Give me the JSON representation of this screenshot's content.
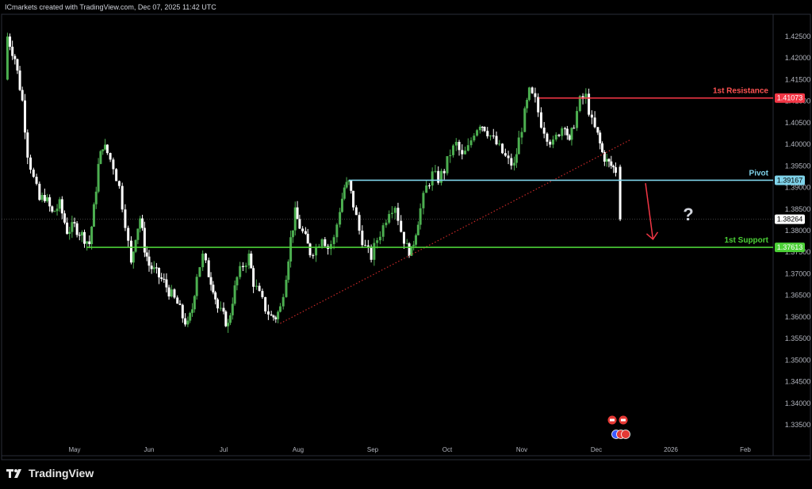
{
  "header": {
    "credit": "ICmarkets created with TradingView.com, Dec 07, 2025 11:42 UTC"
  },
  "footer": {
    "brand": "TradingView",
    "logo_icon": "tradingview-logo-icon"
  },
  "colors": {
    "background": "#000000",
    "bull": "#4caf50",
    "bear": "#ffffff",
    "resistance": "#f23645",
    "pivot": "#7fd3ea",
    "support": "#4cd137",
    "trendline": "#c62828",
    "arrow": "#f23645",
    "axis_text": "#b2b5be"
  },
  "chart_data": {
    "type": "candlestick",
    "title": "",
    "xlabel": "",
    "ylabel": "",
    "ylim": [
      1.3328,
      1.4272
    ],
    "y_ticks": [
      "1.42500",
      "1.42000",
      "1.41500",
      "1.41000",
      "1.40500",
      "1.40000",
      "1.39500",
      "1.39000",
      "1.38500",
      "1.38000",
      "1.37500",
      "1.37000",
      "1.36500",
      "1.36000",
      "1.35500",
      "1.35000",
      "1.34500",
      "1.34000",
      "1.33500"
    ],
    "x_ticks": [
      "May",
      "Jun",
      "Jul",
      "Aug",
      "Sep",
      "Oct",
      "Nov",
      "Dec",
      "2026",
      "Feb"
    ],
    "levels": [
      {
        "name": "1st Resistance",
        "value": 1.41073,
        "label": "1.41073",
        "start_month": 6.23
      },
      {
        "name": "Pivot",
        "value": 1.39167,
        "label": "1.39167",
        "start_month": 3.68
      },
      {
        "name": "1st Support",
        "value": 1.37613,
        "label": "1.37613",
        "start_month": 0.16
      }
    ],
    "current_price": {
      "value": 1.38264,
      "label": "1.38264"
    },
    "trendline": {
      "from": {
        "month": 2.76,
        "price": 1.3585
      },
      "to": {
        "month": 7.45,
        "price": 1.401
      }
    },
    "projection": {
      "from": {
        "month": 7.66,
        "price": 1.391
      },
      "to": {
        "month": 7.76,
        "price": 1.378
      },
      "marker": "?"
    },
    "event_icons": [
      "flag-icon",
      "flag-icon",
      "us-flag-icon"
    ],
    "month_index_note": "months since May 1 (May=0)",
    "path": [
      [
        -0.93,
        1.415
      ],
      [
        -0.9,
        1.425
      ],
      [
        -0.8,
        1.42
      ],
      [
        -0.7,
        1.41
      ],
      [
        -0.63,
        1.398
      ],
      [
        -0.55,
        1.392
      ],
      [
        -0.47,
        1.387
      ],
      [
        -0.4,
        1.388
      ],
      [
        -0.3,
        1.384
      ],
      [
        -0.2,
        1.386
      ],
      [
        -0.1,
        1.38
      ],
      [
        0.0,
        1.381
      ],
      [
        0.1,
        1.379
      ],
      [
        0.2,
        1.377
      ],
      [
        0.26,
        1.385
      ],
      [
        0.32,
        1.395
      ],
      [
        0.38,
        1.4
      ],
      [
        0.44,
        1.398
      ],
      [
        0.52,
        1.395
      ],
      [
        0.6,
        1.39
      ],
      [
        0.68,
        1.382
      ],
      [
        0.76,
        1.372
      ],
      [
        0.82,
        1.379
      ],
      [
        0.88,
        1.383
      ],
      [
        0.94,
        1.376
      ],
      [
        1.0,
        1.372
      ],
      [
        1.1,
        1.37
      ],
      [
        1.2,
        1.368
      ],
      [
        1.3,
        1.365
      ],
      [
        1.38,
        1.363
      ],
      [
        1.45,
        1.36
      ],
      [
        1.52,
        1.358
      ],
      [
        1.58,
        1.362
      ],
      [
        1.64,
        1.37
      ],
      [
        1.72,
        1.374
      ],
      [
        1.8,
        1.37
      ],
      [
        1.86,
        1.367
      ],
      [
        1.92,
        1.362
      ],
      [
        2.0,
        1.36
      ],
      [
        2.06,
        1.358
      ],
      [
        2.12,
        1.364
      ],
      [
        2.18,
        1.369
      ],
      [
        2.26,
        1.372
      ],
      [
        2.34,
        1.374
      ],
      [
        2.4,
        1.368
      ],
      [
        2.48,
        1.365
      ],
      [
        2.56,
        1.362
      ],
      [
        2.64,
        1.36
      ],
      [
        2.7,
        1.36
      ],
      [
        2.76,
        1.362
      ],
      [
        2.84,
        1.37
      ],
      [
        2.9,
        1.378
      ],
      [
        2.96,
        1.384
      ],
      [
        3.02,
        1.381
      ],
      [
        3.1,
        1.378
      ],
      [
        3.16,
        1.375
      ],
      [
        3.24,
        1.376
      ],
      [
        3.32,
        1.379
      ],
      [
        3.4,
        1.376
      ],
      [
        3.48,
        1.378
      ],
      [
        3.56,
        1.385
      ],
      [
        3.62,
        1.39
      ],
      [
        3.68,
        1.391
      ],
      [
        3.74,
        1.386
      ],
      [
        3.82,
        1.38
      ],
      [
        3.9,
        1.376
      ],
      [
        3.98,
        1.374
      ],
      [
        4.06,
        1.378
      ],
      [
        4.14,
        1.381
      ],
      [
        4.22,
        1.385
      ],
      [
        4.3,
        1.386
      ],
      [
        4.38,
        1.38
      ],
      [
        4.46,
        1.376
      ],
      [
        4.52,
        1.375
      ],
      [
        4.58,
        1.38
      ],
      [
        4.64,
        1.385
      ],
      [
        4.72,
        1.39
      ],
      [
        4.8,
        1.393
      ],
      [
        4.88,
        1.392
      ],
      [
        4.96,
        1.394
      ],
      [
        5.04,
        1.398
      ],
      [
        5.12,
        1.4
      ],
      [
        5.2,
        1.397
      ],
      [
        5.28,
        1.399
      ],
      [
        5.36,
        1.403
      ],
      [
        5.44,
        1.405
      ],
      [
        5.5,
        1.404
      ],
      [
        5.58,
        1.402
      ],
      [
        5.66,
        1.4
      ],
      [
        5.74,
        1.398
      ],
      [
        5.82,
        1.396
      ],
      [
        5.9,
        1.395
      ],
      [
        5.96,
        1.401
      ],
      [
        6.04,
        1.407
      ],
      [
        6.1,
        1.412
      ],
      [
        6.18,
        1.41
      ],
      [
        6.26,
        1.405
      ],
      [
        6.34,
        1.402
      ],
      [
        6.42,
        1.4
      ],
      [
        6.5,
        1.403
      ],
      [
        6.58,
        1.405
      ],
      [
        6.64,
        1.4
      ],
      [
        6.7,
        1.405
      ],
      [
        6.78,
        1.41
      ],
      [
        6.86,
        1.411
      ],
      [
        6.94,
        1.405
      ],
      [
        7.02,
        1.402
      ],
      [
        7.08,
        1.398
      ],
      [
        7.14,
        1.396
      ],
      [
        7.2,
        1.395
      ],
      [
        7.26,
        1.394
      ]
    ],
    "last_candle": {
      "month": 7.32,
      "open": 1.3948,
      "close": 1.3826,
      "high": 1.3953,
      "low": 1.3822
    }
  }
}
